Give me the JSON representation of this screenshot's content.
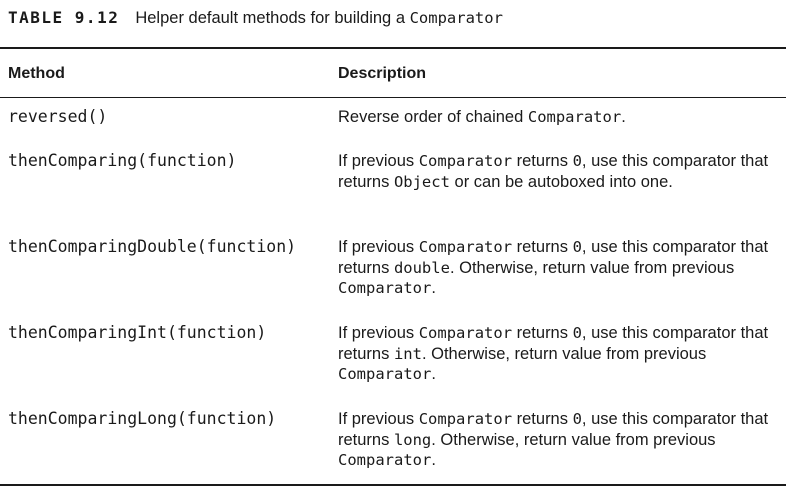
{
  "caption": {
    "table_number": "TABLE 9.12",
    "title_text": "Helper default methods for building a ",
    "title_code": "Comparator"
  },
  "headers": {
    "method": "Method",
    "description": "Description"
  },
  "rows": [
    {
      "method": "reversed()",
      "description": [
        {
          "t": "Reverse order of chained "
        },
        {
          "c": "Comparator"
        },
        {
          "t": "."
        }
      ]
    },
    {
      "method": "thenComparing(function)",
      "description": [
        {
          "t": "If previous "
        },
        {
          "c": "Comparator"
        },
        {
          "t": " returns "
        },
        {
          "c": "0"
        },
        {
          "t": ", use this comparator that returns "
        },
        {
          "c": "Object"
        },
        {
          "t": " or can be autoboxed into one."
        }
      ]
    },
    {
      "method": "thenComparingDouble(function)",
      "description": [
        {
          "t": "If previous "
        },
        {
          "c": "Comparator"
        },
        {
          "t": " returns "
        },
        {
          "c": "0"
        },
        {
          "t": ", use this comparator that returns "
        },
        {
          "c": "double"
        },
        {
          "t": ". Otherwise, return value from previous "
        },
        {
          "c": "Comparator"
        },
        {
          "t": "."
        }
      ]
    },
    {
      "method": "thenComparingInt(function)",
      "description": [
        {
          "t": "If previous "
        },
        {
          "c": "Comparator"
        },
        {
          "t": " returns "
        },
        {
          "c": "0"
        },
        {
          "t": ", use this comparator that returns "
        },
        {
          "c": "int"
        },
        {
          "t": ". Otherwise, return value from previous "
        },
        {
          "c": "Comparator"
        },
        {
          "t": "."
        }
      ]
    },
    {
      "method": "thenComparingLong(function)",
      "description": [
        {
          "t": "If previous "
        },
        {
          "c": "Comparator"
        },
        {
          "t": " returns "
        },
        {
          "c": "0"
        },
        {
          "t": ", use this comparator that returns "
        },
        {
          "c": "long"
        },
        {
          "t": ". Otherwise, return value from previous "
        },
        {
          "c": "Comparator"
        },
        {
          "t": "."
        }
      ]
    }
  ]
}
